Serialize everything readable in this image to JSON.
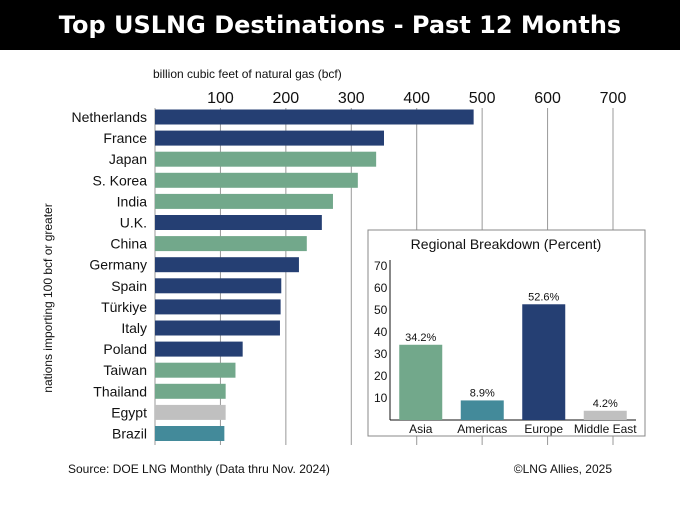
{
  "title": "Top USLNG Destinations - Past 12 Months",
  "colors": {
    "europe": "#253f73",
    "asia": "#72a88b",
    "middle_east": "#c0c0c0",
    "americas": "#438a9a",
    "grid": "#999999"
  },
  "chart_data": [
    {
      "type": "bar",
      "orientation": "horizontal",
      "xlabel": "billion cubic feet of natural gas (bcf)",
      "ylabel": "nations importing 100 bcf or greater",
      "xlim": [
        0,
        700
      ],
      "xticks": [
        100,
        200,
        300,
        400,
        500,
        600,
        700
      ],
      "grid": true,
      "categories": [
        "Netherlands",
        "France",
        "Japan",
        "S. Korea",
        "India",
        "U.K.",
        "China",
        "Germany",
        "Spain",
        "Türkiye",
        "Italy",
        "Poland",
        "Taiwan",
        "Thailand",
        "Egypt",
        "Brazil"
      ],
      "values": [
        487,
        350,
        338,
        310,
        272,
        255,
        232,
        220,
        193,
        192,
        191,
        134,
        123,
        108,
        108,
        106
      ],
      "regions": [
        "europe",
        "europe",
        "asia",
        "asia",
        "asia",
        "europe",
        "asia",
        "europe",
        "europe",
        "europe",
        "europe",
        "europe",
        "asia",
        "asia",
        "middle_east",
        "americas"
      ]
    },
    {
      "type": "bar",
      "title": "Regional Breakdown (Percent)",
      "ylim": [
        0,
        70
      ],
      "yticks": [
        10,
        20,
        30,
        40,
        50,
        60,
        70
      ],
      "categories": [
        "Asia",
        "Americas",
        "Europe",
        "Middle East"
      ],
      "values": [
        34.2,
        8.9,
        52.6,
        4.2
      ],
      "value_labels": [
        "34.2%",
        "8.9%",
        "52.6%",
        "4.2%"
      ],
      "regions": [
        "asia",
        "americas",
        "europe",
        "middle_east"
      ]
    }
  ],
  "footer": {
    "source": "Source: DOE LNG Monthly (Data thru Nov. 2024)",
    "copyright": "©LNG Allies, 2025"
  }
}
